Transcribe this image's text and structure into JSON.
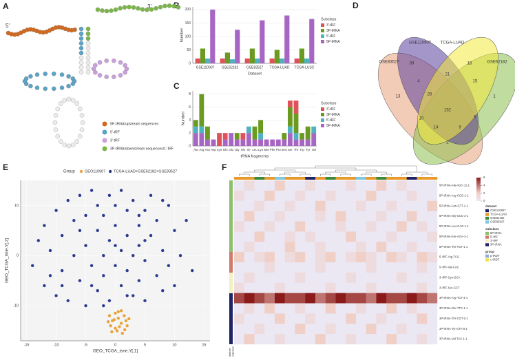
{
  "panel_labels": [
    "A",
    "B",
    "C",
    "D",
    "E",
    "F"
  ],
  "diagram_a": {
    "end_5": "5'",
    "end_3": "3'",
    "legend": [
      "5P-tRNA/upstream sequences",
      "5'-tRF",
      "3'-tRF",
      "3P-tRNA/downstream sequences/1'-tRF"
    ]
  },
  "chart_data": [
    {
      "type": "bar",
      "xlabel": "Dataset",
      "ylabel": "Number",
      "legend_title": "Subclass",
      "categories": [
        "GSE110907",
        "GSE62182",
        "GSE83527",
        "TCGA-LUAD",
        "TCGA-LUSC"
      ],
      "series": [
        {
          "name": "3'-tRF",
          "color": "#e0525a",
          "values": [
            18,
            18,
            18,
            18,
            18
          ]
        },
        {
          "name": "3P-tRNA",
          "color": "#6a9a1f",
          "values": [
            55,
            40,
            55,
            50,
            55
          ]
        },
        {
          "name": "5'-tRF",
          "color": "#4fb3bf",
          "values": [
            18,
            15,
            18,
            18,
            18
          ]
        },
        {
          "name": "5P-tRNA",
          "color": "#a866c4",
          "values": [
            200,
            125,
            160,
            178,
            165
          ]
        }
      ],
      "ylim": [
        0,
        210
      ],
      "yticks": [
        0,
        50,
        100,
        150,
        200
      ],
      "grid": true
    },
    {
      "type": "stacked_bar",
      "xlabel": "tRNA fragments",
      "ylabel": "Number",
      "legend_title": "Subclass",
      "categories": [
        "Ala",
        "Arg",
        "Asn",
        "Asp",
        "Cys",
        "Gln",
        "Glu",
        "Gly",
        "His",
        "Ile",
        "Leu",
        "Lys",
        "Met",
        "Phe",
        "Pro",
        "SeC",
        "Ser",
        "Thr",
        "Trp",
        "Tyr",
        "Val"
      ],
      "series": [
        {
          "name": "3'-tRF",
          "color": "#e0525a",
          "values": [
            0,
            0,
            0,
            0,
            2,
            1,
            0,
            0,
            1,
            0,
            0,
            0,
            0,
            0,
            0,
            0,
            1,
            2,
            0,
            0,
            0
          ]
        },
        {
          "name": "3P-tRNA",
          "color": "#6a9a1f",
          "values": [
            1,
            5,
            2,
            0,
            0,
            0,
            0,
            1,
            0,
            0,
            2,
            2,
            0,
            0,
            0,
            1,
            3,
            3,
            1,
            2,
            0
          ]
        },
        {
          "name": "5'-tRF",
          "color": "#4fb3bf",
          "values": [
            1,
            1,
            0,
            0,
            0,
            0,
            0,
            0,
            0,
            1,
            0,
            1,
            0,
            0,
            0,
            0,
            1,
            1,
            0,
            0,
            1
          ]
        },
        {
          "name": "5P-tRNA",
          "color": "#a866c4",
          "values": [
            2,
            2,
            1,
            1,
            0,
            1,
            2,
            1,
            1,
            2,
            1,
            1,
            1,
            1,
            1,
            1,
            2,
            1,
            1,
            1,
            2
          ]
        }
      ],
      "ylim": [
        0,
        8.5
      ],
      "yticks": [
        0,
        2,
        4,
        6,
        8
      ],
      "grid": true
    },
    {
      "type": "scatter",
      "legend_title": "Group",
      "xlabel": "GEO_TCGA_tsne.Y[,1]",
      "ylabel": "GEO_TCGA_tsne.Y[,2]",
      "series": [
        {
          "name": "GEO110907",
          "color": "#e8a33a",
          "x": [
            -1,
            -0.5,
            0,
            0.5,
            1,
            1.5,
            2,
            0,
            -0.8,
            1,
            0.3,
            1.8,
            -1.2,
            0.7,
            2.3,
            -0.2,
            1.2,
            0.5,
            -0.6,
            1.6
          ],
          "y": [
            -12,
            -13,
            -11.5,
            -12.5,
            -13.5,
            -12,
            -14,
            -14.5,
            -14,
            -11,
            -15,
            -13,
            -13.2,
            -14.2,
            -12.6,
            -12.8,
            -15.5,
            -11.2,
            -15.2,
            -14.8
          ]
        },
        {
          "name": "TCGA-LUAD+GSE62182+GSE83527",
          "color": "#2b3990",
          "x": [
            -14,
            -13,
            -12,
            -12,
            -11,
            -10,
            -10,
            -9,
            -9,
            -8,
            -8,
            -7,
            -7,
            -6,
            -6,
            -5,
            -5,
            -5,
            -4,
            -4,
            -3,
            -3,
            -3,
            -2,
            -2,
            -2,
            -1,
            -1,
            -1,
            0,
            0,
            0,
            1,
            1,
            1,
            2,
            2,
            2,
            3,
            3,
            3,
            4,
            4,
            4,
            5,
            5,
            5,
            6,
            6,
            7,
            7,
            8,
            8,
            9,
            9,
            10,
            10,
            11,
            12,
            13,
            -9,
            -6,
            -2,
            2,
            5,
            8,
            -11,
            0,
            4,
            -4
          ],
          "y": [
            -2,
            3,
            -6,
            6,
            1,
            -8,
            9,
            -3,
            4,
            11,
            -9,
            0,
            7,
            -5,
            12,
            2,
            -10,
            8,
            -2,
            13,
            5,
            -7,
            10,
            0,
            -4,
            8,
            12,
            -9,
            3,
            6,
            -2,
            10,
            -6,
            1,
            13,
            4,
            -3,
            9,
            -8,
            0,
            11,
            6,
            -5,
            2,
            9,
            -1,
            -9,
            4,
            12,
            -4,
            7,
            1,
            -7,
            10,
            -2,
            5,
            -6,
            0,
            7,
            -3,
            -6,
            5,
            -10,
            -8,
            3,
            11,
            -4,
            2,
            8,
            -6
          ]
        }
      ],
      "xlim": [
        -16,
        16
      ],
      "ylim": [
        -17,
        15
      ],
      "xticks": [
        -15,
        -10,
        -5,
        0,
        5,
        10,
        15
      ],
      "yticks": [
        -10,
        0,
        10
      ],
      "grid": true
    }
  ],
  "venn_d": {
    "sets": [
      "GSE83527",
      "GSE110907",
      "TCGA-LUAD",
      "GSE62182"
    ],
    "counts": [
      39,
      18,
      13,
      1,
      4,
      21,
      15,
      28,
      152,
      6,
      10,
      14,
      9,
      2
    ]
  },
  "heatmap_f": {
    "row_labels": [
      "5P-tRNA-Ala-AGC-11-1",
      "5P-tRNA-Arg-CCG-1-1",
      "5P-tRNA-Asn-GTT-2-1",
      "5P-tRNA-Gly-GCC-2-1",
      "5P-tRNA-Leu-CAG-1-1",
      "5P-tRNA-Ser-AGA-2-1",
      "5P-tRNA-Thr-TGT-1-1",
      "5'-tRF-Arg-TCG",
      "5'-tRF-Val-CAC",
      "3'-tRF-Cys-GCA",
      "3'-tRF-Ser-GCT",
      "3P-tRNA-Arg-TCT-4-1",
      "3P-tRNA-Glu-TTC-1-1",
      "3P-tRNA-Thr-CGT-2-1",
      "3P-tRNA-Tyr-GTA-5-1",
      "3P-tRNA-Val-TAC-1-1"
    ],
    "matrix": [
      [
        0,
        1,
        0,
        0,
        2,
        0,
        0,
        1,
        0,
        0,
        0,
        1,
        0,
        0,
        2,
        0,
        1,
        0,
        0,
        0
      ],
      [
        1,
        0,
        0,
        2,
        0,
        0,
        1,
        0,
        0,
        1,
        0,
        0,
        0,
        2,
        0,
        0,
        0,
        1,
        0,
        0
      ],
      [
        0,
        0,
        1,
        0,
        0,
        1,
        0,
        0,
        2,
        0,
        0,
        0,
        1,
        0,
        0,
        1,
        0,
        0,
        0,
        2
      ],
      [
        0,
        2,
        0,
        0,
        1,
        0,
        0,
        0,
        1,
        0,
        2,
        0,
        0,
        0,
        1,
        0,
        0,
        2,
        0,
        0
      ],
      [
        1,
        0,
        0,
        1,
        0,
        0,
        2,
        0,
        0,
        0,
        1,
        0,
        0,
        1,
        0,
        0,
        2,
        0,
        1,
        0
      ],
      [
        0,
        0,
        2,
        0,
        0,
        1,
        0,
        1,
        0,
        0,
        0,
        2,
        0,
        0,
        0,
        1,
        0,
        0,
        0,
        1
      ],
      [
        0,
        1,
        0,
        0,
        0,
        2,
        0,
        0,
        1,
        0,
        0,
        0,
        1,
        0,
        2,
        0,
        0,
        1,
        0,
        0
      ],
      [
        2,
        0,
        1,
        2,
        0,
        1,
        2,
        0,
        1,
        2,
        0,
        1,
        2,
        1,
        0,
        2,
        1,
        0,
        2,
        1
      ],
      [
        0,
        0,
        0,
        1,
        0,
        0,
        0,
        0,
        1,
        0,
        0,
        0,
        0,
        1,
        0,
        0,
        0,
        0,
        1,
        0
      ],
      [
        0,
        1,
        0,
        0,
        0,
        0,
        1,
        0,
        0,
        0,
        0,
        1,
        0,
        0,
        0,
        0,
        1,
        0,
        0,
        0
      ],
      [
        1,
        0,
        0,
        0,
        1,
        0,
        0,
        0,
        0,
        1,
        0,
        0,
        0,
        1,
        0,
        0,
        0,
        0,
        1,
        0
      ],
      [
        5,
        6,
        5,
        4,
        6,
        5,
        5,
        6,
        4,
        5,
        6,
        5,
        5,
        4,
        6,
        5,
        5,
        6,
        5,
        4
      ],
      [
        0,
        1,
        0,
        2,
        0,
        0,
        1,
        0,
        0,
        2,
        0,
        0,
        1,
        0,
        0,
        2,
        0,
        1,
        0,
        0
      ],
      [
        1,
        0,
        0,
        0,
        2,
        0,
        0,
        1,
        0,
        0,
        0,
        2,
        0,
        0,
        1,
        0,
        0,
        0,
        2,
        0
      ],
      [
        0,
        0,
        1,
        0,
        0,
        0,
        2,
        0,
        0,
        1,
        0,
        0,
        0,
        2,
        0,
        0,
        1,
        0,
        0,
        0
      ],
      [
        0,
        2,
        0,
        0,
        1,
        0,
        0,
        0,
        2,
        0,
        0,
        1,
        0,
        0,
        0,
        2,
        0,
        0,
        1,
        0
      ]
    ],
    "scale_ticks": [
      6,
      4,
      2,
      0
    ],
    "legends": [
      {
        "title": "dataset",
        "items": [
          {
            "name": "GSE110907",
            "color": "#1f2466"
          },
          {
            "name": "TCGA-LUAD",
            "color": "#e89b2c"
          },
          {
            "name": "GSE62182",
            "color": "#3d8a3a"
          },
          {
            "name": "GSE83527",
            "color": "#7ec8e3"
          }
        ]
      },
      {
        "title": "subclass",
        "items": [
          {
            "name": "5P-tRNA",
            "color": "#8cc06c"
          },
          {
            "name": "5'-tRF",
            "color": "#d07a6a"
          },
          {
            "name": "3'-tRF",
            "color": "#f3f0c2"
          },
          {
            "name": "3P-tRNA",
            "color": "#1f2466"
          }
        ]
      },
      {
        "title": "group",
        "items": [
          {
            "name": "p-tRDF",
            "color": "#8fa8d8"
          },
          {
            "name": "c-tRDF",
            "color": "#f0e04a"
          }
        ]
      }
    ],
    "bottom_labels": [
      "dataset",
      "subclass"
    ]
  }
}
